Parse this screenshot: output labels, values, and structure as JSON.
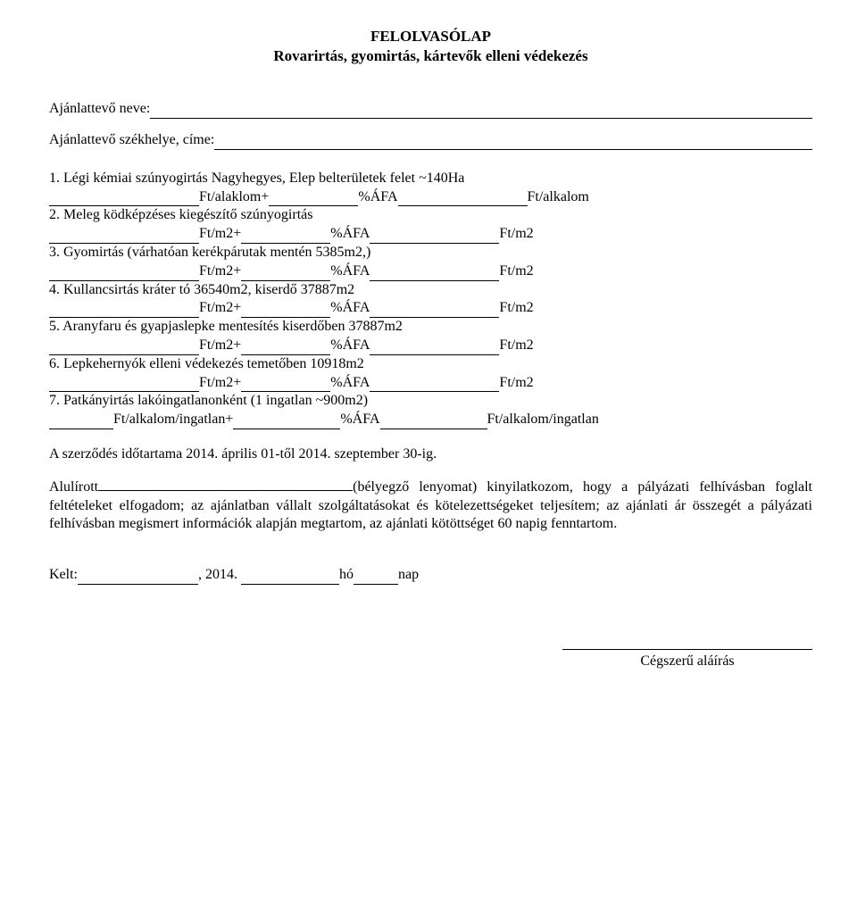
{
  "title1": "FELOLVASÓLAP",
  "title2": "Rovarirtás, gyomirtás, kártevők elleni védekezés",
  "fields": {
    "name_label": "Ajánlattevő neve:",
    "addr_label": "Ajánlattevő székhelye, címe:"
  },
  "items": [
    {
      "text": "1. Légi kémiai szúnyogirtás Nagyhegyes, Elep belterületek felet ~140Ha",
      "u1": "Ft/alaklom+",
      "u2": "%ÁFA",
      "u3": "Ft/alkalom"
    },
    {
      "text": "2. Meleg ködképzéses kiegészítő szúnyogirtás",
      "u1": "Ft/m2+",
      "u2": "%ÁFA",
      "u3": "Ft/m2"
    },
    {
      "text": "3. Gyomirtás (várhatóan kerékpárutak mentén 5385m2,)",
      "u1": "Ft/m2+",
      "u2": "%ÁFA",
      "u3": "Ft/m2"
    },
    {
      "text": "4. Kullancsirtás kráter tó 36540m2, kiserdő 37887m2",
      "u1": "Ft/m2+",
      "u2": "%ÁFA",
      "u3": "Ft/m2"
    },
    {
      "text": "5. Aranyfaru és gyapjaslepke mentesítés kiserdőben 37887m2",
      "u1": "Ft/m2+",
      "u2": "%ÁFA",
      "u3": "Ft/m2"
    },
    {
      "text": "6. Lepkehernyók elleni védekezés temetőben 10918m2",
      "u1": "Ft/m2+",
      "u2": "%ÁFA",
      "u3": "Ft/m2"
    },
    {
      "text": "7. Patkányirtás lakóingatlanonként (1 ingatlan ~900m2)",
      "u1": "Ft/alkalom/ingatlan+",
      "u2": "%ÁFA",
      "u3": "Ft/alkalom/ingatlan"
    }
  ],
  "contract_period": "A szerződés időtartama 2014. április 01-től 2014. szeptember 30-ig.",
  "decl_prefix": "Alulírott",
  "decl_suffix": "(bélyegző lenyomat) kinyilatkozom, hogy a pályázati felhívásban foglalt feltételeket elfogadom; az ajánlatban vállalt szolgáltatásokat és kötelezettségeket teljesítem; az ajánlati ár összegét a pályázati felhívásban megismert információk alapján megtartom, az ajánlati kötöttséget 60 napig fenntartom.",
  "kelt": "Kelt:",
  "kelt_year": ", 2014.",
  "kelt_month": "hó",
  "kelt_day": "nap",
  "signature": "Cégszerű aláírás"
}
